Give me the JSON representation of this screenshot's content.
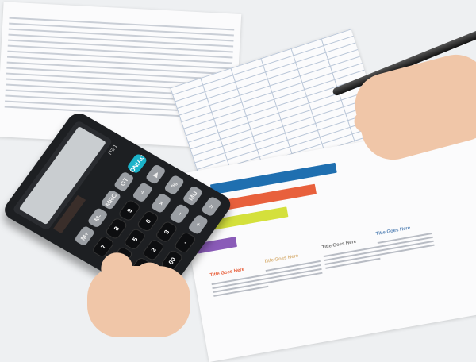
{
  "calculator": {
    "brand": "DELI",
    "accent": "#1bb3c9",
    "keys": [
      [
        "ON/AC",
        "GT",
        "MRC",
        "M-",
        "M+"
      ],
      [
        "▶",
        "÷",
        "9",
        "8",
        "7"
      ],
      [
        "%",
        "×",
        "6",
        "5",
        "4"
      ],
      [
        "MU",
        "−",
        "3",
        "2",
        "1"
      ],
      [
        "=",
        "+",
        "·",
        "00",
        "0"
      ]
    ]
  },
  "report": {
    "bar_colors": [
      "#1f6fb0",
      "#e8603c",
      "#d4e03c",
      "#8a5bb8",
      "#1f6fb0"
    ],
    "headings": [
      "Title Goes Here",
      "Title Goes Here",
      "Title Goes Here",
      "Title Goes Here"
    ]
  }
}
